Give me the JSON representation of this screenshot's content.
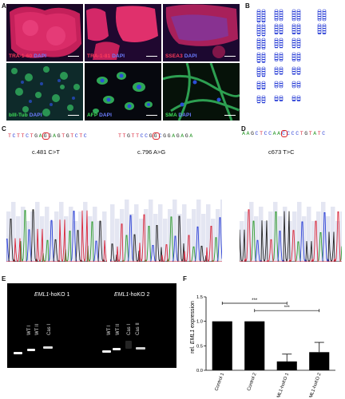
{
  "panels": {
    "A": "A",
    "B": "B",
    "C": "C",
    "D": "D",
    "E": "E",
    "F": "F"
  },
  "panelA": {
    "tiles": [
      {
        "label": "TRA-1-60",
        "dapi": "DAPI",
        "color": "#ff3b5c"
      },
      {
        "label": "TRA-1-81",
        "dapi": "DAPI",
        "color": "#ff3b5c"
      },
      {
        "label": "SSEA3",
        "dapi": "DAPI",
        "color": "#ff3b5c"
      },
      {
        "label": "bIII-Tub",
        "dapi": "DAPI",
        "color": "#3fe05a"
      },
      {
        "label": "AFP",
        "dapi": "DAPI",
        "color": "#3fe05a"
      },
      {
        "label": "SMA",
        "dapi": "DAPI",
        "color": "#3fe05a"
      }
    ]
  },
  "panelC": {
    "left": {
      "seq": "TCTTCTGAGGAGTGTCTC",
      "mutation": "c.481 C>T",
      "highlight_index": 8
    },
    "right": {
      "seq": "TTGTTCCGGCGGAGAGA",
      "mutation": "c.796 A>G",
      "highlight_index": 8
    }
  },
  "panelD": {
    "seq": "AAGCTCCAACCCCTGTATC",
    "mutation": "c673 T>C",
    "highlight_index": 9
  },
  "panelE": {
    "gel1": {
      "title_italic": "EML1",
      "title_rest": "-hoKO 1",
      "lanes": [
        "WT I",
        "WT II",
        "Cas I"
      ]
    },
    "gel2": {
      "title_italic": "EML1",
      "title_rest": "-hoKO 2",
      "lanes": [
        "WT I",
        "WT II",
        "Cas I",
        "Cas II"
      ]
    }
  },
  "panelF": {
    "ylabel_prefix": "rel.",
    "ylabel_italic": "EML1",
    "ylabel_suffix": " expression",
    "significance": [
      "***",
      "***"
    ],
    "yticks": [
      "0.0",
      "0.5",
      "1.0",
      "1.5"
    ]
  },
  "chart_data": {
    "type": "bar",
    "categories": [
      "Control 1",
      "Control 2",
      "EML1-hoKO 1",
      "EML1-hoKO 2"
    ],
    "values": [
      1.0,
      1.0,
      0.18,
      0.37
    ],
    "errors": [
      0,
      0,
      0.15,
      0.2
    ],
    "ylabel": "rel. EML1 expression",
    "ylim": [
      0,
      1.5
    ],
    "grid": false
  },
  "colors": {
    "red": "#ff3b5c",
    "green": "#3fe05a",
    "blue": "#2a3fd6",
    "mutation_box": "#d81f26"
  }
}
